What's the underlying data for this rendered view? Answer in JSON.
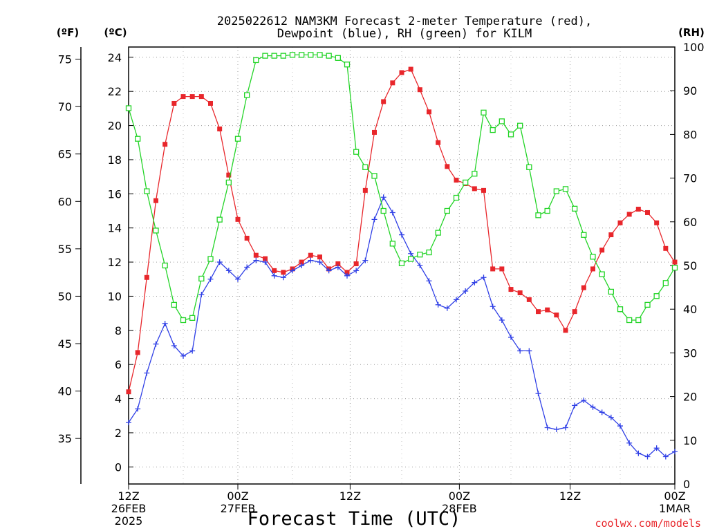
{
  "chart_data": {
    "type": "line",
    "title_line1": "2025022612 NAM3KM Forecast 2-meter Temperature (red),",
    "title_line2": "Dewpoint (blue), RH (green) for KILM",
    "xlabel": "Forecast Time (UTC)",
    "watermark": "coolwx.com/models",
    "unit_labels": {
      "left_outer": "(ºF)",
      "left_inner": "(ºC)",
      "right": "(RH)"
    },
    "grid": true,
    "x_range_hours": [
      0,
      36
    ],
    "y_celsius_range": [
      -1,
      24.6
    ],
    "y_rh_range": [
      0,
      100
    ],
    "x_ticks": [
      {
        "h": 0,
        "l1": "12Z",
        "l2": "26FEB",
        "l3": "2025"
      },
      {
        "h": 7.2,
        "l1": "00Z",
        "l2": "27FEB",
        "l3": ""
      },
      {
        "h": 14.6,
        "l1": "12Z",
        "l2": "",
        "l3": ""
      },
      {
        "h": 21.8,
        "l1": "00Z",
        "l2": "28FEB",
        "l3": ""
      },
      {
        "h": 29.1,
        "l1": "12Z",
        "l2": "",
        "l3": ""
      },
      {
        "h": 36,
        "l1": "00Z",
        "l2": "1MAR",
        "l3": ""
      }
    ],
    "celsius_ticks": [
      0,
      2,
      4,
      6,
      8,
      10,
      12,
      14,
      16,
      18,
      20,
      22,
      24
    ],
    "fahrenheit_ticks": [
      35,
      40,
      45,
      50,
      55,
      60,
      65,
      70,
      75
    ],
    "rh_ticks": [
      0,
      10,
      20,
      30,
      40,
      50,
      60,
      70,
      80,
      90,
      100
    ],
    "x": [
      0,
      0.6,
      1.2,
      1.8,
      2.4,
      3,
      3.6,
      4.2,
      4.8,
      5.4,
      6,
      6.6,
      7.2,
      7.8,
      8.4,
      9,
      9.6,
      10.2,
      10.8,
      11.4,
      12,
      12.6,
      13.2,
      13.8,
      14.4,
      15,
      15.6,
      16.2,
      16.8,
      17.4,
      18,
      18.6,
      19.2,
      19.8,
      20.4,
      21,
      21.6,
      22.2,
      22.8,
      23.4,
      24,
      24.6,
      25.2,
      25.8,
      26.4,
      27,
      27.6,
      28.2,
      28.8,
      29.4,
      30,
      30.6,
      31.2,
      31.8,
      32.4,
      33,
      33.6,
      34.2,
      34.8,
      35.4,
      36
    ],
    "series": [
      {
        "name": "Temperature",
        "unit": "C",
        "color": "#e8262b",
        "marker": "filled-square",
        "values": [
          4.4,
          6.7,
          11.1,
          15.6,
          18.9,
          21.3,
          21.7,
          21.7,
          21.7,
          21.3,
          19.8,
          17.1,
          14.5,
          13.4,
          12.4,
          12.2,
          11.5,
          11.4,
          11.6,
          12.0,
          12.4,
          12.3,
          11.6,
          11.9,
          11.4,
          11.9,
          16.2,
          19.6,
          21.4,
          22.5,
          23.1,
          23.3,
          22.1,
          20.8,
          19.0,
          17.6,
          16.8,
          16.6,
          16.3,
          16.2,
          11.6,
          11.6,
          10.4,
          10.2,
          9.8,
          9.1,
          9.2,
          8.9,
          8.0,
          9.1,
          10.5,
          11.6,
          12.7,
          13.6,
          14.3,
          14.8,
          15.1,
          14.9,
          14.3,
          12.8,
          12.0
        ]
      },
      {
        "name": "Dewpoint",
        "unit": "C",
        "color": "#2f3fe6",
        "marker": "plus",
        "values": [
          2.6,
          3.4,
          5.5,
          7.2,
          8.4,
          7.1,
          6.5,
          6.8,
          10.1,
          11.0,
          12.0,
          11.5,
          11.0,
          11.7,
          12.1,
          12.0,
          11.2,
          11.1,
          11.5,
          11.8,
          12.1,
          12.0,
          11.5,
          11.7,
          11.2,
          11.5,
          12.1,
          14.5,
          15.8,
          14.9,
          13.6,
          12.5,
          11.8,
          10.9,
          9.5,
          9.3,
          9.8,
          10.3,
          10.8,
          11.1,
          9.4,
          8.6,
          7.6,
          6.8,
          6.8,
          4.3,
          2.3,
          2.2,
          2.3,
          3.6,
          3.9,
          3.5,
          3.2,
          2.9,
          2.4,
          1.4,
          0.8,
          0.6,
          1.1,
          0.6,
          0.9
        ]
      },
      {
        "name": "RH",
        "unit": "%",
        "color": "#22d426",
        "marker": "open-square",
        "values": [
          86,
          79,
          67,
          58,
          50,
          41,
          37.5,
          38,
          47,
          51.5,
          60.5,
          69,
          79,
          89,
          97,
          98,
          98,
          98,
          98.2,
          98.2,
          98.2,
          98.2,
          98,
          97.5,
          96,
          76,
          72.5,
          70.5,
          62.5,
          55,
          50.5,
          51.5,
          52.5,
          53,
          57.5,
          62.5,
          65.5,
          69,
          71,
          85,
          81,
          83,
          80,
          82,
          72.5,
          61.5,
          62.5,
          67,
          67.5,
          63,
          57,
          52,
          48,
          44,
          40,
          37.5,
          37.5,
          41,
          43,
          46,
          49.5
        ]
      }
    ]
  }
}
